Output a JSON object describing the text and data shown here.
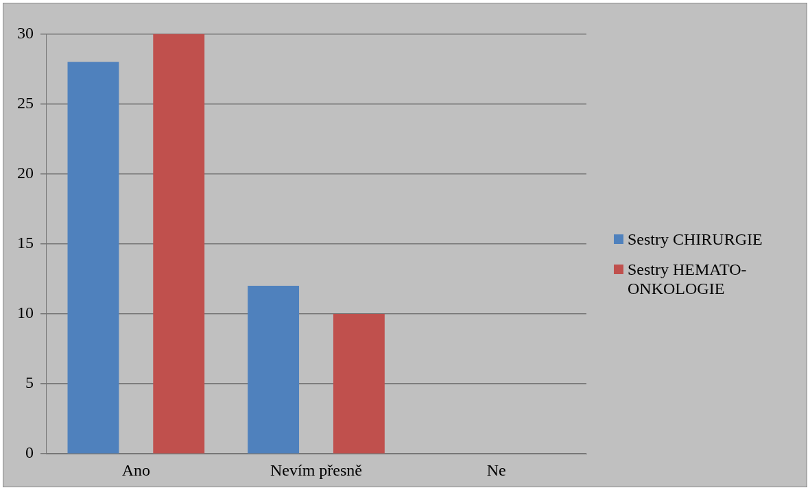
{
  "chart_data": {
    "type": "bar",
    "categories": [
      "Ano",
      "Nevím přesně",
      "Ne"
    ],
    "series": [
      {
        "name": "Sestry CHIRURGIE",
        "color": "#4f81bd",
        "values": [
          28,
          12,
          0
        ]
      },
      {
        "name": "Sestry HEMATO-ONKOLOGIE",
        "color": "#c0504d",
        "values": [
          30,
          10,
          0
        ]
      }
    ],
    "ylim": [
      0,
      30
    ],
    "yticks": [
      0,
      5,
      10,
      15,
      20,
      25,
      30
    ],
    "grid": "y",
    "legend": "right"
  }
}
